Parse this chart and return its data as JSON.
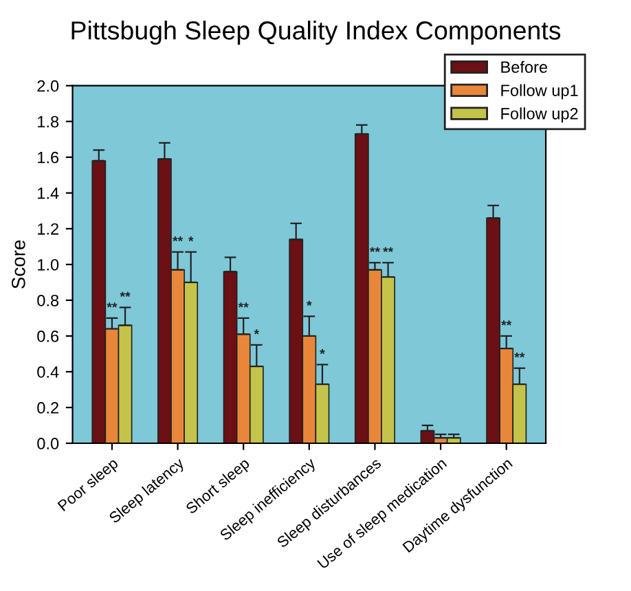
{
  "chart_data": {
    "type": "bar",
    "title": "Pittsbugh Sleep Quality Index Components",
    "ylabel": "Score",
    "categories": [
      "Poor sleep",
      "Sleep latency",
      "Short sleep",
      "Sleep inefficiency",
      "Sleep disturbances",
      "Use of sleep medication",
      "Daytime dysfunction"
    ],
    "series": [
      {
        "name": "Before",
        "color": "#6b1014",
        "values": [
          1.58,
          1.59,
          0.96,
          1.14,
          1.73,
          0.07,
          1.26
        ],
        "errors": [
          [
            1.58,
            1.64
          ],
          [
            1.59,
            1.68
          ],
          [
            0.96,
            1.04
          ],
          [
            1.14,
            1.23
          ],
          [
            1.73,
            1.78
          ],
          [
            0.07,
            0.1
          ],
          [
            1.26,
            1.33
          ]
        ]
      },
      {
        "name": "Follow up1",
        "color": "#e8873a",
        "values": [
          0.64,
          0.97,
          0.61,
          0.6,
          0.97,
          0.03,
          0.53
        ],
        "errors": [
          [
            0.64,
            0.7
          ],
          [
            0.97,
            1.07
          ],
          [
            0.61,
            0.7
          ],
          [
            0.6,
            0.71
          ],
          [
            0.97,
            1.01
          ],
          [
            0.03,
            0.05
          ],
          [
            0.53,
            0.6
          ]
        ],
        "value_labels": [
          "**",
          "**",
          "**",
          "*",
          "**",
          null,
          "**"
        ]
      },
      {
        "name": "Follow up2",
        "color": "#c4c44a",
        "values": [
          0.66,
          0.9,
          0.43,
          0.33,
          0.93,
          0.03,
          0.33
        ],
        "errors": [
          [
            0.66,
            0.76
          ],
          [
            0.9,
            1.07
          ],
          [
            0.43,
            0.55
          ],
          [
            0.33,
            0.44
          ],
          [
            0.93,
            1.01
          ],
          [
            0.03,
            0.05
          ],
          [
            0.33,
            0.42
          ]
        ],
        "value_labels": [
          "**",
          "*",
          "*",
          "*",
          "**",
          null,
          "**"
        ]
      }
    ],
    "ylim": [
      0,
      2.0
    ],
    "yticks": [
      {
        "value": 0,
        "label": "0.0"
      },
      {
        "value": 0.2,
        "label": "0.2"
      },
      {
        "value": 0.4,
        "label": "0.4"
      },
      {
        "value": 0.6,
        "label": "0.6"
      },
      {
        "value": 0.8,
        "label": "0.8"
      },
      {
        "value": 1.0,
        "label": "1.0"
      },
      {
        "value": 1.2,
        "label": "1.2"
      },
      {
        "value": 1.4,
        "label": "1.4"
      },
      {
        "value": 1.6,
        "label": "1.6"
      },
      {
        "value": 1.8,
        "label": "1.8"
      },
      {
        "value": 2.0,
        "label": "2.0"
      }
    ],
    "grid": false,
    "legend": "top right"
  }
}
